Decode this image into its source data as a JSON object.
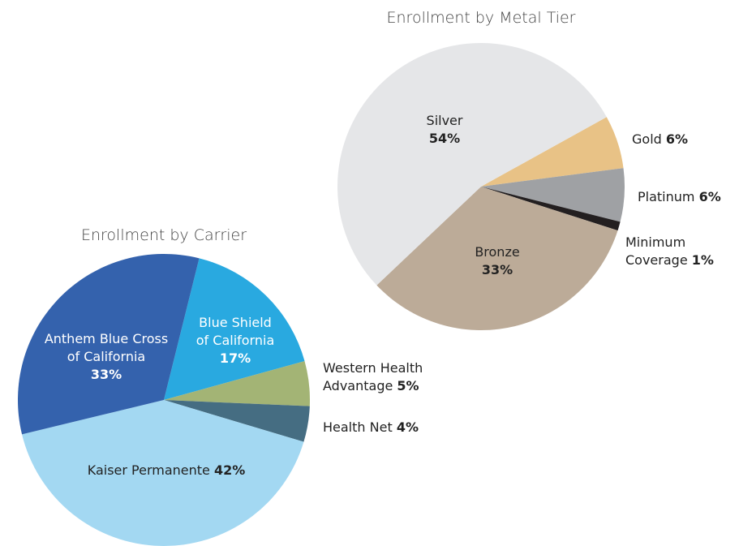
{
  "chart_data": [
    {
      "type": "pie",
      "title": "Enrollment by Metal Tier",
      "categories": [
        "Gold",
        "Platinum",
        "Minimum\nCoverage",
        "Bronze",
        "Silver"
      ],
      "values": [
        6,
        6,
        1,
        33,
        54
      ],
      "value_labels": [
        "6%",
        "6%",
        "1%",
        "33%",
        "54%"
      ],
      "colors": [
        "#e8c286",
        "#9fa1a4",
        "#231f20",
        "#bcab98",
        "#e5e6e8"
      ]
    },
    {
      "type": "pie",
      "title": "Enrollment by Carrier",
      "categories": [
        "Blue Shield\nof California",
        "Western Health\nAdvantage",
        "Health Net",
        "Kaiser Permanente",
        "Anthem Blue Cross\nof California"
      ],
      "values": [
        17,
        5,
        4,
        42,
        33
      ],
      "value_labels": [
        "17%",
        "5%",
        "4%",
        "42%",
        "33%"
      ],
      "colors": [
        "#29a9e0",
        "#a3b475",
        "#456d82",
        "#a3d8f2",
        "#3462ad"
      ]
    }
  ]
}
